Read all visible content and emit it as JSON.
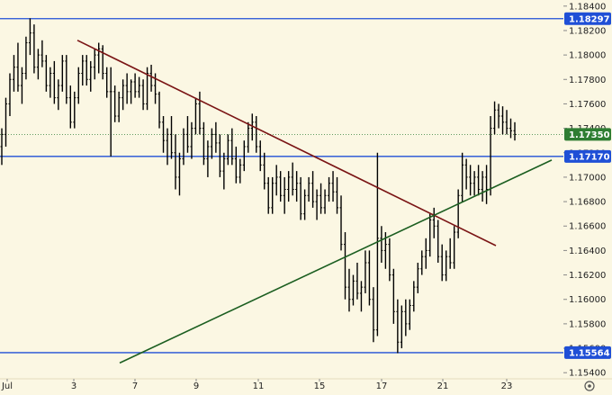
{
  "chart_data": {
    "type": "bar",
    "style": "ohlc",
    "ylim": [
      1.1535,
      1.1845
    ],
    "y_ticks": [
      1.154,
      1.156,
      1.158,
      1.16,
      1.162,
      1.164,
      1.166,
      1.168,
      1.17,
      1.172,
      1.174,
      1.176,
      1.178,
      1.18,
      1.182,
      1.184
    ],
    "y_tick_labels": [
      "1.15400",
      "1.15600",
      "1.15800",
      "1.16000",
      "1.16200",
      "1.16400",
      "1.16600",
      "1.16800",
      "1.17000",
      "1.17200",
      "1.17400",
      "1.17600",
      "1.17800",
      "1.18000",
      "1.18200",
      "1.18400"
    ],
    "x_tick_labels": [
      "Jul",
      "3",
      "7",
      "9",
      "11",
      "15",
      "17",
      "21",
      "23"
    ],
    "grid": false,
    "bar_color": "#000000",
    "horizontal_levels": [
      {
        "value": 1.18297,
        "label": "1.18297",
        "color": "#1f4fd6"
      },
      {
        "value": 1.1717,
        "label": "1.17170",
        "color": "#1f4fd6"
      },
      {
        "value": 1.15564,
        "label": "1.15564",
        "color": "#1f4fd6"
      }
    ],
    "current_price": {
      "value": 1.1735,
      "label": "1.17350",
      "color": "#2e7d32"
    },
    "trendlines": [
      {
        "name": "",
        "color": "#7a1414",
        "from": {
          "x_label": "3",
          "y": 1.1812
        },
        "to": {
          "x_label": "23",
          "y": 1.1644
        }
      },
      {
        "name": "",
        "color": "#1b5e20",
        "from": {
          "x_label": "7",
          "y": 1.1548
        },
        "to": {
          "x_label": "23",
          "y": 1.1714
        }
      }
    ],
    "series": [
      {
        "values": [
          [
            1.1725,
            1.174,
            1.171,
            1.1735
          ],
          [
            1.1735,
            1.1765,
            1.1725,
            1.176
          ],
          [
            1.176,
            1.1785,
            1.175,
            1.178
          ],
          [
            1.178,
            1.18,
            1.177,
            1.179
          ],
          [
            1.179,
            1.181,
            1.177,
            1.1775
          ],
          [
            1.1775,
            1.179,
            1.176,
            1.1785
          ],
          [
            1.1785,
            1.1815,
            1.178,
            1.181
          ],
          [
            1.181,
            1.183,
            1.18,
            1.1818
          ],
          [
            1.1818,
            1.1825,
            1.1785,
            1.179
          ],
          [
            1.179,
            1.1805,
            1.178,
            1.18
          ],
          [
            1.18,
            1.1812,
            1.179,
            1.1795
          ],
          [
            1.1795,
            1.18,
            1.177,
            1.1775
          ],
          [
            1.1775,
            1.179,
            1.1765,
            1.1785
          ],
          [
            1.1785,
            1.1795,
            1.176,
            1.1765
          ],
          [
            1.1765,
            1.178,
            1.1755,
            1.1775
          ],
          [
            1.1775,
            1.18,
            1.177,
            1.1795
          ],
          [
            1.1795,
            1.18,
            1.176,
            1.1765
          ],
          [
            1.1765,
            1.1775,
            1.174,
            1.1745
          ],
          [
            1.1745,
            1.177,
            1.174,
            1.1765
          ],
          [
            1.1765,
            1.179,
            1.176,
            1.1785
          ],
          [
            1.1785,
            1.18,
            1.1775,
            1.1795
          ],
          [
            1.1795,
            1.18,
            1.1775,
            1.178
          ],
          [
            1.178,
            1.1795,
            1.177,
            1.179
          ],
          [
            1.179,
            1.1805,
            1.178,
            1.18
          ],
          [
            1.18,
            1.181,
            1.1785,
            1.1805
          ],
          [
            1.1805,
            1.1808,
            1.178,
            1.1785
          ],
          [
            1.1785,
            1.179,
            1.1765,
            1.177
          ],
          [
            1.177,
            1.179,
            1.1717,
            1.177
          ],
          [
            1.177,
            1.1775,
            1.1745,
            1.175
          ],
          [
            1.175,
            1.177,
            1.1745,
            1.1765
          ],
          [
            1.1765,
            1.178,
            1.1755,
            1.1775
          ],
          [
            1.1775,
            1.1785,
            1.176,
            1.177
          ],
          [
            1.177,
            1.178,
            1.176,
            1.1778
          ],
          [
            1.1778,
            1.1785,
            1.1765,
            1.177
          ],
          [
            1.177,
            1.1782,
            1.1765,
            1.1775
          ],
          [
            1.1775,
            1.178,
            1.1755,
            1.176
          ],
          [
            1.176,
            1.179,
            1.1755,
            1.1785
          ],
          [
            1.1785,
            1.1792,
            1.177,
            1.1775
          ],
          [
            1.1775,
            1.1785,
            1.176,
            1.1768
          ],
          [
            1.1768,
            1.177,
            1.174,
            1.1745
          ],
          [
            1.1745,
            1.175,
            1.172,
            1.173
          ],
          [
            1.173,
            1.174,
            1.171,
            1.1735
          ],
          [
            1.1735,
            1.175,
            1.1715,
            1.172
          ],
          [
            1.172,
            1.1735,
            1.169,
            1.17
          ],
          [
            1.17,
            1.172,
            1.1685,
            1.1715
          ],
          [
            1.1715,
            1.174,
            1.171,
            1.1735
          ],
          [
            1.1735,
            1.175,
            1.172,
            1.1725
          ],
          [
            1.1725,
            1.1745,
            1.1715,
            1.174
          ],
          [
            1.174,
            1.1765,
            1.1735,
            1.176
          ],
          [
            1.176,
            1.177,
            1.1735,
            1.174
          ],
          [
            1.174,
            1.1745,
            1.171,
            1.1715
          ],
          [
            1.1715,
            1.173,
            1.17,
            1.1725
          ],
          [
            1.1725,
            1.174,
            1.1715,
            1.1735
          ],
          [
            1.1735,
            1.1745,
            1.172,
            1.1728
          ],
          [
            1.1728,
            1.1735,
            1.17,
            1.1705
          ],
          [
            1.1705,
            1.172,
            1.169,
            1.1715
          ],
          [
            1.1715,
            1.1735,
            1.171,
            1.173
          ],
          [
            1.173,
            1.174,
            1.171,
            1.1715
          ],
          [
            1.1715,
            1.1725,
            1.1695,
            1.17
          ],
          [
            1.17,
            1.1715,
            1.1695,
            1.171
          ],
          [
            1.171,
            1.173,
            1.1705,
            1.1725
          ],
          [
            1.1725,
            1.1745,
            1.172,
            1.174
          ],
          [
            1.174,
            1.1752,
            1.173,
            1.1745
          ],
          [
            1.1745,
            1.175,
            1.172,
            1.1725
          ],
          [
            1.1725,
            1.173,
            1.1705,
            1.171
          ],
          [
            1.171,
            1.172,
            1.169,
            1.1695
          ],
          [
            1.1695,
            1.17,
            1.167,
            1.1675
          ],
          [
            1.1675,
            1.17,
            1.167,
            1.1695
          ],
          [
            1.1695,
            1.171,
            1.1685,
            1.17
          ],
          [
            1.17,
            1.1705,
            1.168,
            1.1685
          ],
          [
            1.1685,
            1.17,
            1.167,
            1.169
          ],
          [
            1.169,
            1.1705,
            1.168,
            1.17
          ],
          [
            1.17,
            1.1712,
            1.1685,
            1.169
          ],
          [
            1.169,
            1.1705,
            1.168,
            1.1695
          ],
          [
            1.1695,
            1.17,
            1.1665,
            1.167
          ],
          [
            1.167,
            1.169,
            1.1665,
            1.1685
          ],
          [
            1.1685,
            1.17,
            1.168,
            1.1695
          ],
          [
            1.1695,
            1.1705,
            1.1675,
            1.168
          ],
          [
            1.168,
            1.169,
            1.1665,
            1.1685
          ],
          [
            1.1685,
            1.1695,
            1.167,
            1.1675
          ],
          [
            1.1675,
            1.169,
            1.167,
            1.1685
          ],
          [
            1.1685,
            1.17,
            1.168,
            1.1695
          ],
          [
            1.1695,
            1.1705,
            1.168,
            1.1688
          ],
          [
            1.1688,
            1.17,
            1.167,
            1.1675
          ],
          [
            1.1675,
            1.1685,
            1.164,
            1.1645
          ],
          [
            1.1645,
            1.1655,
            1.16,
            1.161
          ],
          [
            1.161,
            1.1625,
            1.159,
            1.16
          ],
          [
            1.16,
            1.162,
            1.1595,
            1.1615
          ],
          [
            1.1615,
            1.163,
            1.16,
            1.1605
          ],
          [
            1.1605,
            1.1615,
            1.159,
            1.161
          ],
          [
            1.161,
            1.164,
            1.1605,
            1.163
          ],
          [
            1.163,
            1.164,
            1.1595,
            1.16
          ],
          [
            1.16,
            1.161,
            1.1565,
            1.1575
          ],
          [
            1.1575,
            1.172,
            1.157,
            1.165
          ],
          [
            1.165,
            1.166,
            1.163,
            1.164
          ],
          [
            1.164,
            1.1655,
            1.1625,
            1.1645
          ],
          [
            1.1645,
            1.165,
            1.1615,
            1.162
          ],
          [
            1.162,
            1.1625,
            1.158,
            1.159
          ],
          [
            1.159,
            1.16,
            1.1556,
            1.1565
          ],
          [
            1.1565,
            1.1595,
            1.156,
            1.159
          ],
          [
            1.159,
            1.16,
            1.157,
            1.158
          ],
          [
            1.158,
            1.16,
            1.1575,
            1.1595
          ],
          [
            1.1595,
            1.1615,
            1.159,
            1.161
          ],
          [
            1.161,
            1.163,
            1.1605,
            1.1625
          ],
          [
            1.1625,
            1.164,
            1.162,
            1.1635
          ],
          [
            1.1635,
            1.165,
            1.1625,
            1.164
          ],
          [
            1.164,
            1.167,
            1.1635,
            1.1665
          ],
          [
            1.1665,
            1.1675,
            1.165,
            1.166
          ],
          [
            1.166,
            1.1665,
            1.163,
            1.1635
          ],
          [
            1.1635,
            1.1645,
            1.1615,
            1.162
          ],
          [
            1.162,
            1.164,
            1.1615,
            1.1635
          ],
          [
            1.1635,
            1.165,
            1.1625,
            1.163
          ],
          [
            1.163,
            1.166,
            1.1625,
            1.1655
          ],
          [
            1.1655,
            1.169,
            1.165,
            1.1685
          ],
          [
            1.1685,
            1.172,
            1.168,
            1.171
          ],
          [
            1.171,
            1.1715,
            1.169,
            1.17
          ],
          [
            1.17,
            1.171,
            1.1685,
            1.1695
          ],
          [
            1.1695,
            1.1705,
            1.1685,
            1.17
          ],
          [
            1.17,
            1.171,
            1.1685,
            1.169
          ],
          [
            1.169,
            1.1705,
            1.168,
            1.17
          ],
          [
            1.17,
            1.171,
            1.1678,
            1.169
          ],
          [
            1.169,
            1.175,
            1.1685,
            1.174
          ],
          [
            1.174,
            1.1762,
            1.1735,
            1.1755
          ],
          [
            1.1755,
            1.176,
            1.174,
            1.175
          ],
          [
            1.175,
            1.1758,
            1.1735,
            1.1745
          ],
          [
            1.1745,
            1.1755,
            1.1735,
            1.174
          ],
          [
            1.174,
            1.1748,
            1.1732,
            1.1738
          ],
          [
            1.1738,
            1.1745,
            1.173,
            1.1735
          ]
        ]
      }
    ]
  },
  "chart_controls": {
    "settings_icon": "gear-icon"
  }
}
